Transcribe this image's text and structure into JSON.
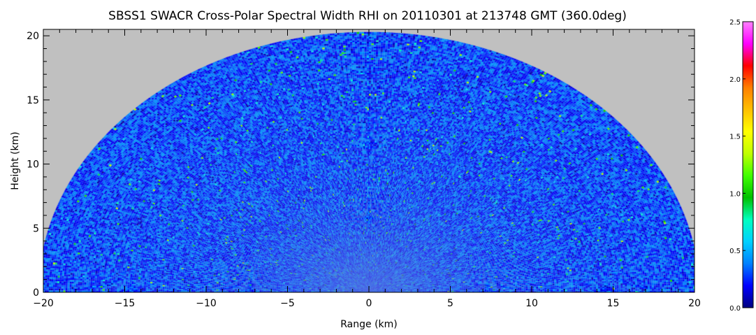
{
  "chart_data": {
    "type": "heatmap",
    "title": "SBSS1 SWACR Cross-Polar Spectral Width RHI on 20110301 at 213748 GMT (360.0deg)",
    "xlabel": "Range (km)",
    "ylabel": "Height (km)",
    "xlim": [
      -20,
      20
    ],
    "ylim": [
      0,
      20.5
    ],
    "x_ticks": [
      -20,
      -15,
      -10,
      -5,
      0,
      5,
      10,
      15,
      20
    ],
    "x_tick_labels": [
      "−20",
      "−15",
      "−10",
      "−5",
      "0",
      "5",
      "10",
      "15",
      "20"
    ],
    "y_ticks": [
      0,
      5,
      10,
      15,
      20
    ],
    "y_tick_labels": [
      "0",
      "5",
      "10",
      "15",
      "20"
    ],
    "scan_max_range_km": 20.3,
    "background_color": "#c0c0c0",
    "dominant_value_range": [
      0.15,
      0.45
    ],
    "colorbar": {
      "range": [
        0.0,
        2.5
      ],
      "ticks": [
        0.0,
        0.5,
        1.0,
        1.5,
        2.0,
        2.5
      ],
      "tick_labels": [
        "0.0",
        "0.5",
        "1.0",
        "1.5",
        "2.0",
        "2.5"
      ],
      "colors": [
        "#000080",
        "#0000ff",
        "#0080ff",
        "#00d0ff",
        "#00ffc0",
        "#00c000",
        "#40ff00",
        "#c0ff00",
        "#ffff00",
        "#ffc000",
        "#ff8000",
        "#ff0000",
        "#ff00ff",
        "#ff80ff"
      ]
    }
  }
}
